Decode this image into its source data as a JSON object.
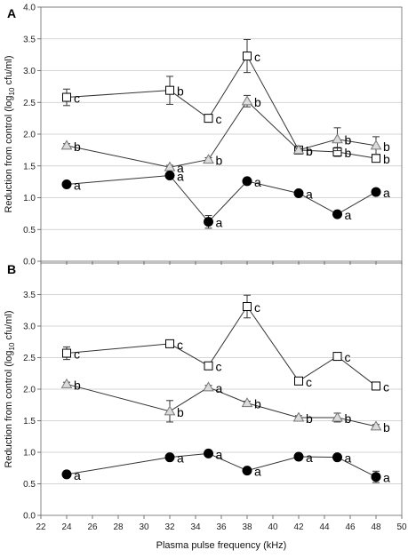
{
  "chart_data": {
    "type": "line",
    "xlabel": "Plasma pulse frequency (kHz)",
    "x_ticks": [
      "22",
      "24",
      "26",
      "28",
      "30",
      "32",
      "34",
      "36",
      "38",
      "40",
      "42",
      "44",
      "46",
      "48",
      "50"
    ],
    "xlim": [
      22,
      50
    ],
    "grid": true,
    "panels": [
      {
        "label": "A",
        "ylabel": "Reduction from control (log10 cfu/ml)",
        "ylim": [
          0,
          4.0
        ],
        "y_ticks": [
          "0.0",
          "0.5",
          "1.0",
          "1.5",
          "2.0",
          "2.5",
          "3.0",
          "3.5",
          "4.0"
        ],
        "series": [
          {
            "marker": "square-open",
            "color": "#000000",
            "x": [
              24,
              32,
              35,
              38,
              42,
              45,
              48
            ],
            "values": [
              2.58,
              2.69,
              2.25,
              3.23,
              1.75,
              1.72,
              1.62
            ],
            "err": [
              0.13,
              0.22,
              0.03,
              0.26,
              0.05,
              0.07,
              0.05
            ],
            "labels": [
              "c",
              "b",
              "c",
              "c",
              "b",
              "b",
              "b"
            ]
          },
          {
            "marker": "triangle-open",
            "color": "#777777",
            "x": [
              24,
              32,
              35,
              38,
              42,
              45,
              48
            ],
            "values": [
              1.82,
              1.48,
              1.6,
              2.52,
              1.75,
              1.92,
              1.82
            ],
            "err": [
              0.03,
              0.03,
              0.03,
              0.09,
              0.03,
              0.18,
              0.14
            ],
            "labels": [
              "b",
              "a",
              "b",
              "b",
              "b",
              "b",
              "b"
            ]
          },
          {
            "marker": "circle-filled",
            "color": "#000000",
            "x": [
              24,
              32,
              35,
              38,
              42,
              45,
              48
            ],
            "values": [
              1.21,
              1.35,
              0.62,
              1.26,
              1.07,
              0.74,
              1.09
            ],
            "err": [
              0.04,
              0.03,
              0.1,
              0.03,
              0.03,
              0.03,
              0.04
            ],
            "labels": [
              "a",
              "a",
              "a",
              "a",
              "a",
              "a",
              "a"
            ]
          }
        ]
      },
      {
        "label": "B",
        "ylabel": "Reduction from control (log10 cfu/ml)",
        "ylim": [
          0,
          4.0
        ],
        "y_ticks": [
          "0.0",
          "0.5",
          "1.0",
          "1.5",
          "2.0",
          "2.5",
          "3.0",
          "3.5"
        ],
        "series": [
          {
            "marker": "square-open",
            "color": "#000000",
            "x": [
              24,
              32,
              35,
              38,
              42,
              45,
              48
            ],
            "values": [
              2.57,
              2.72,
              2.37,
              3.31,
              2.13,
              2.52,
              2.05
            ],
            "err": [
              0.1,
              0.03,
              0.04,
              0.18,
              0.03,
              0.03,
              0.03
            ],
            "labels": [
              "c",
              "c",
              "c",
              "c",
              "c",
              "c",
              "c"
            ]
          },
          {
            "marker": "triangle-open",
            "color": "#777777",
            "x": [
              24,
              32,
              35,
              38,
              42,
              45,
              48
            ],
            "values": [
              2.08,
              1.65,
              2.03,
              1.78,
              1.55,
              1.55,
              1.41
            ],
            "err": [
              0.03,
              0.17,
              0.03,
              0.03,
              0.03,
              0.07,
              0.03
            ],
            "labels": [
              "b",
              "b",
              "a",
              "b",
              "b",
              "b",
              "b"
            ]
          },
          {
            "marker": "circle-filled",
            "color": "#000000",
            "x": [
              24,
              32,
              35,
              38,
              42,
              45,
              48
            ],
            "values": [
              0.65,
              0.92,
              0.98,
              0.71,
              0.93,
              0.92,
              0.61
            ],
            "err": [
              0.05,
              0.04,
              0.03,
              0.03,
              0.03,
              0.05,
              0.09
            ],
            "labels": [
              "a",
              "a",
              "a",
              "a",
              "a",
              "a",
              "a"
            ]
          }
        ]
      }
    ]
  }
}
